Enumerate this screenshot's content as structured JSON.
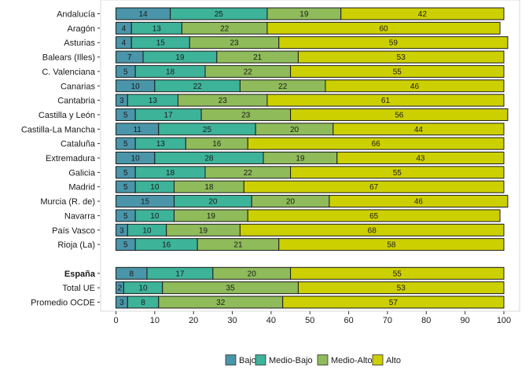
{
  "chart_data": {
    "type": "bar",
    "orientation": "horizontal",
    "stacked": true,
    "title": "",
    "xlabel": "",
    "ylabel": "",
    "xlim": [
      0,
      100
    ],
    "xticks": [
      0,
      10,
      20,
      30,
      40,
      50,
      60,
      70,
      80,
      90,
      100
    ],
    "grid": false,
    "legend_position": "bottom",
    "groups": [
      {
        "categories": [
          "Andalucía",
          "Aragón",
          "Asturias",
          "Balears (Illes)",
          "C. Valenciana",
          "Canarias",
          "Cantabria",
          "Castilla y León",
          "Castilla-La Mancha",
          "Cataluña",
          "Extremadura",
          "Galicia",
          "Madrid",
          "Murcia (R. de)",
          "Navarra",
          "País Vasco",
          "Rioja (La)"
        ],
        "bold": [
          false,
          false,
          false,
          false,
          false,
          false,
          false,
          false,
          false,
          false,
          false,
          false,
          false,
          false,
          false,
          false,
          false
        ]
      },
      {
        "categories": [
          "España",
          "Total UE",
          "Promedio OCDE"
        ],
        "bold": [
          true,
          false,
          false
        ]
      }
    ],
    "series": [
      {
        "name": "Bajo",
        "color": "#4a95a9",
        "values": [
          14,
          4,
          4,
          7,
          5,
          10,
          3,
          5,
          11,
          5,
          10,
          5,
          5,
          15,
          5,
          3,
          5,
          8,
          2,
          3
        ]
      },
      {
        "name": "Medio-Bajo",
        "color": "#3db39a",
        "values": [
          25,
          13,
          15,
          19,
          18,
          22,
          13,
          17,
          25,
          13,
          28,
          18,
          10,
          20,
          10,
          10,
          16,
          17,
          10,
          8
        ]
      },
      {
        "name": "Medio-Alto",
        "color": "#8fbb5a",
        "values": [
          19,
          22,
          23,
          21,
          22,
          22,
          23,
          23,
          20,
          16,
          19,
          22,
          18,
          20,
          19,
          19,
          21,
          20,
          35,
          32
        ]
      },
      {
        "name": "Alto",
        "color": "#cdd000",
        "values": [
          42,
          60,
          59,
          53,
          55,
          46,
          61,
          56,
          44,
          66,
          43,
          55,
          67,
          46,
          65,
          68,
          58,
          55,
          53,
          57
        ]
      }
    ]
  }
}
